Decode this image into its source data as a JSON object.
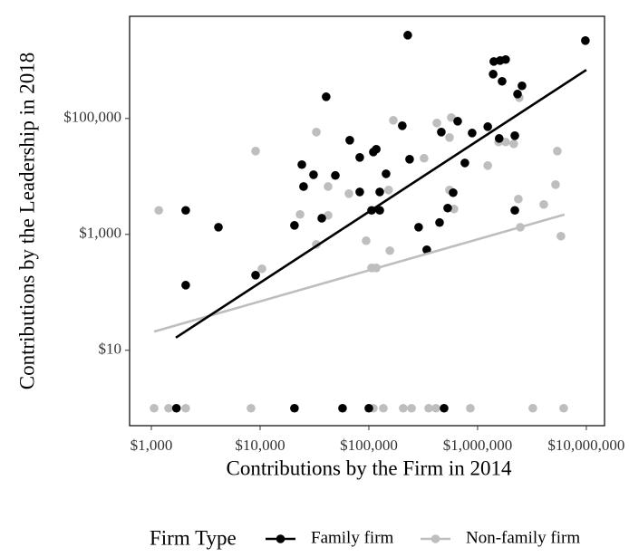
{
  "chart_data": {
    "type": "scatter",
    "x_label": "Contributions by the Firm in 2014",
    "y_label": "Contributions by the Leadership in 2018",
    "xscale": "log",
    "yscale": "log",
    "xlim": [
      631,
      14700000
    ],
    "ylim": [
      0.5,
      5800000
    ],
    "xticks": [
      {
        "value": 1000,
        "label": "$1,000"
      },
      {
        "value": 10000,
        "label": "$10,000"
      },
      {
        "value": 100000,
        "label": "$100,000"
      },
      {
        "value": 1000000,
        "label": "$1,000,000"
      },
      {
        "value": 10000000,
        "label": "$10,000,000"
      }
    ],
    "yticks": [
      {
        "value": 10,
        "label": "$10"
      },
      {
        "value": 1000,
        "label": "$1,000"
      },
      {
        "value": 100000,
        "label": "$100,000"
      }
    ],
    "legend_title": "Firm Type",
    "series": [
      {
        "name": "Family firm",
        "color": "#000000",
        "x": [
          1700,
          2070,
          2070,
          4140,
          9090,
          20700,
          20700,
          24200,
          25100,
          31000,
          36900,
          40500,
          49200,
          57300,
          66800,
          82500,
          82500,
          100000,
          106000,
          110000,
          117000,
          126000,
          126000,
          144000,
          203000,
          228000,
          237000,
          287000,
          341000,
          447000,
          464000,
          492000,
          531000,
          596000,
          656000,
          764000,
          891000,
          1240000,
          1410000,
          1390000,
          1610000,
          1680000,
          1810000,
          1580000,
          2200000,
          2200000,
          2330000,
          2560000,
          9800000
        ],
        "values": [
          1,
          2600,
          133,
          1330,
          198,
          1430,
          1,
          16000,
          6700,
          10700,
          1900,
          237000,
          10400,
          1,
          42200,
          21300,
          5400,
          1,
          2600,
          26400,
          29500,
          5400,
          2600,
          11100,
          75000,
          2740000,
          19800,
          1330,
          542,
          1600,
          58300,
          1,
          2840,
          5240,
          89700,
          17100,
          56200,
          72300,
          964000,
          583000,
          1000000,
          438000,
          1040000,
          45300,
          50500,
          2600,
          264000,
          366000,
          2210000
        ],
        "fit_x": [
          1680,
          10000000
        ],
        "fit_y": [
          16.5,
          690000
        ]
      },
      {
        "name": "Non-family firm",
        "color": "#bebebe",
        "x": [
          1170,
          1060,
          1440,
          2070,
          9090,
          10400,
          8250,
          23300,
          32900,
          32900,
          42200,
          42200,
          65600,
          94400,
          106000,
          117000,
          110000,
          136000,
          152000,
          156000,
          168000,
          207000,
          247000,
          322000,
          355000,
          414000,
          422000,
          552000,
          552000,
          573000,
          607000,
          858000,
          1240000,
          1560000,
          1810000,
          2150000,
          2420000,
          2370000,
          2470000,
          3220000,
          4060000,
          5210000,
          5410000,
          5840000,
          6190000
        ],
        "values": [
          2600,
          1,
          1,
          1,
          27400,
          255,
          1,
          2210,
          673,
          58300,
          6700,
          2130,
          5050,
          778,
          264,
          264,
          1,
          1,
          5830,
          524,
          93000,
          1,
          1,
          20600,
          1,
          1,
          83600,
          47000,
          5830,
          104000,
          2740,
          1,
          15400,
          39300,
          39300,
          36500,
          229000,
          4070,
          1330,
          1,
          3280,
          7230,
          27400,
          931,
          1
        ],
        "fit_x": [
          1060,
          6300000
        ],
        "fit_y": [
          21,
          2200
        ]
      }
    ]
  }
}
